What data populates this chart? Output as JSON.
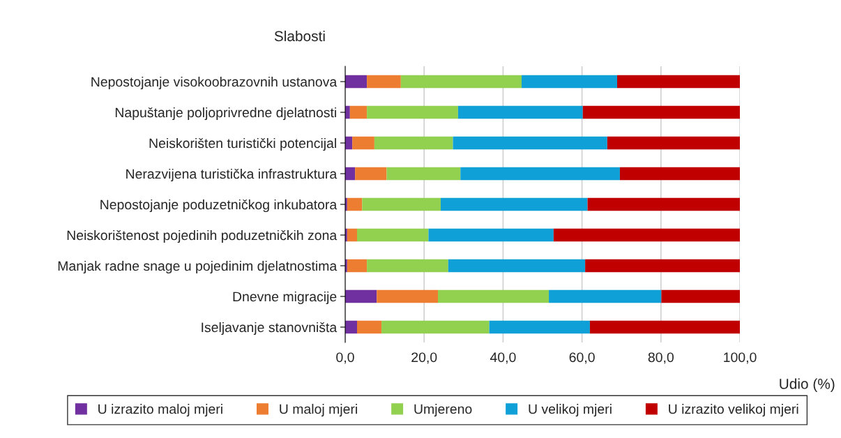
{
  "chart_data": {
    "type": "bar",
    "orientation": "horizontal",
    "stacked": true,
    "ylabel": "Slabosti",
    "xlabel": "Udio (%)",
    "categories": [
      "Nepostojanje visokoobrazovnih ustanova",
      "Napuštanje poljoprivredne djelatnosti",
      "Neiskorišten turistički potencijal",
      "Nerazvijena turistička infrastruktura",
      "Nepostojanje poduzetničkog inkubatora",
      "Neiskorištenost pojedinih poduzetničkih zona",
      "Manjak radne snage u pojedinim djelatnostima",
      "Dnevne migracije",
      "Iseljavanje stanovništa"
    ],
    "series": [
      {
        "name": "U izrazito maloj mjeri",
        "color": "#7030a0",
        "values": [
          5.5,
          1.2,
          1.8,
          2.5,
          0.5,
          0.5,
          0.5,
          8.0,
          3.0
        ]
      },
      {
        "name": "U maloj mjeri",
        "color": "#ed7d31",
        "values": [
          8.6,
          4.3,
          5.6,
          8.0,
          3.8,
          2.5,
          5.0,
          15.5,
          6.2
        ]
      },
      {
        "name": "Umjereno",
        "color": "#92d050",
        "values": [
          30.6,
          23.1,
          19.9,
          18.7,
          19.9,
          18.1,
          20.6,
          28.1,
          27.3
        ]
      },
      {
        "name": "U velikoj mjeri",
        "color": "#10a0d8",
        "values": [
          24.2,
          31.6,
          39.1,
          40.4,
          37.2,
          31.7,
          34.7,
          28.5,
          25.5
        ]
      },
      {
        "name": "U izrazito velikoj mjeri",
        "color": "#c00000",
        "values": [
          31.1,
          39.8,
          33.6,
          30.4,
          38.6,
          47.2,
          39.2,
          19.9,
          38.0
        ]
      }
    ],
    "xlim": [
      0,
      100
    ],
    "xticks": [
      {
        "value": 0,
        "label": "0,0"
      },
      {
        "value": 20,
        "label": "20,0"
      },
      {
        "value": 40,
        "label": "40,0"
      },
      {
        "value": 60,
        "label": "60,0"
      },
      {
        "value": 80,
        "label": "80,0"
      },
      {
        "value": 100,
        "label": "100,0"
      }
    ],
    "grid": "x",
    "legend": "bottom"
  }
}
